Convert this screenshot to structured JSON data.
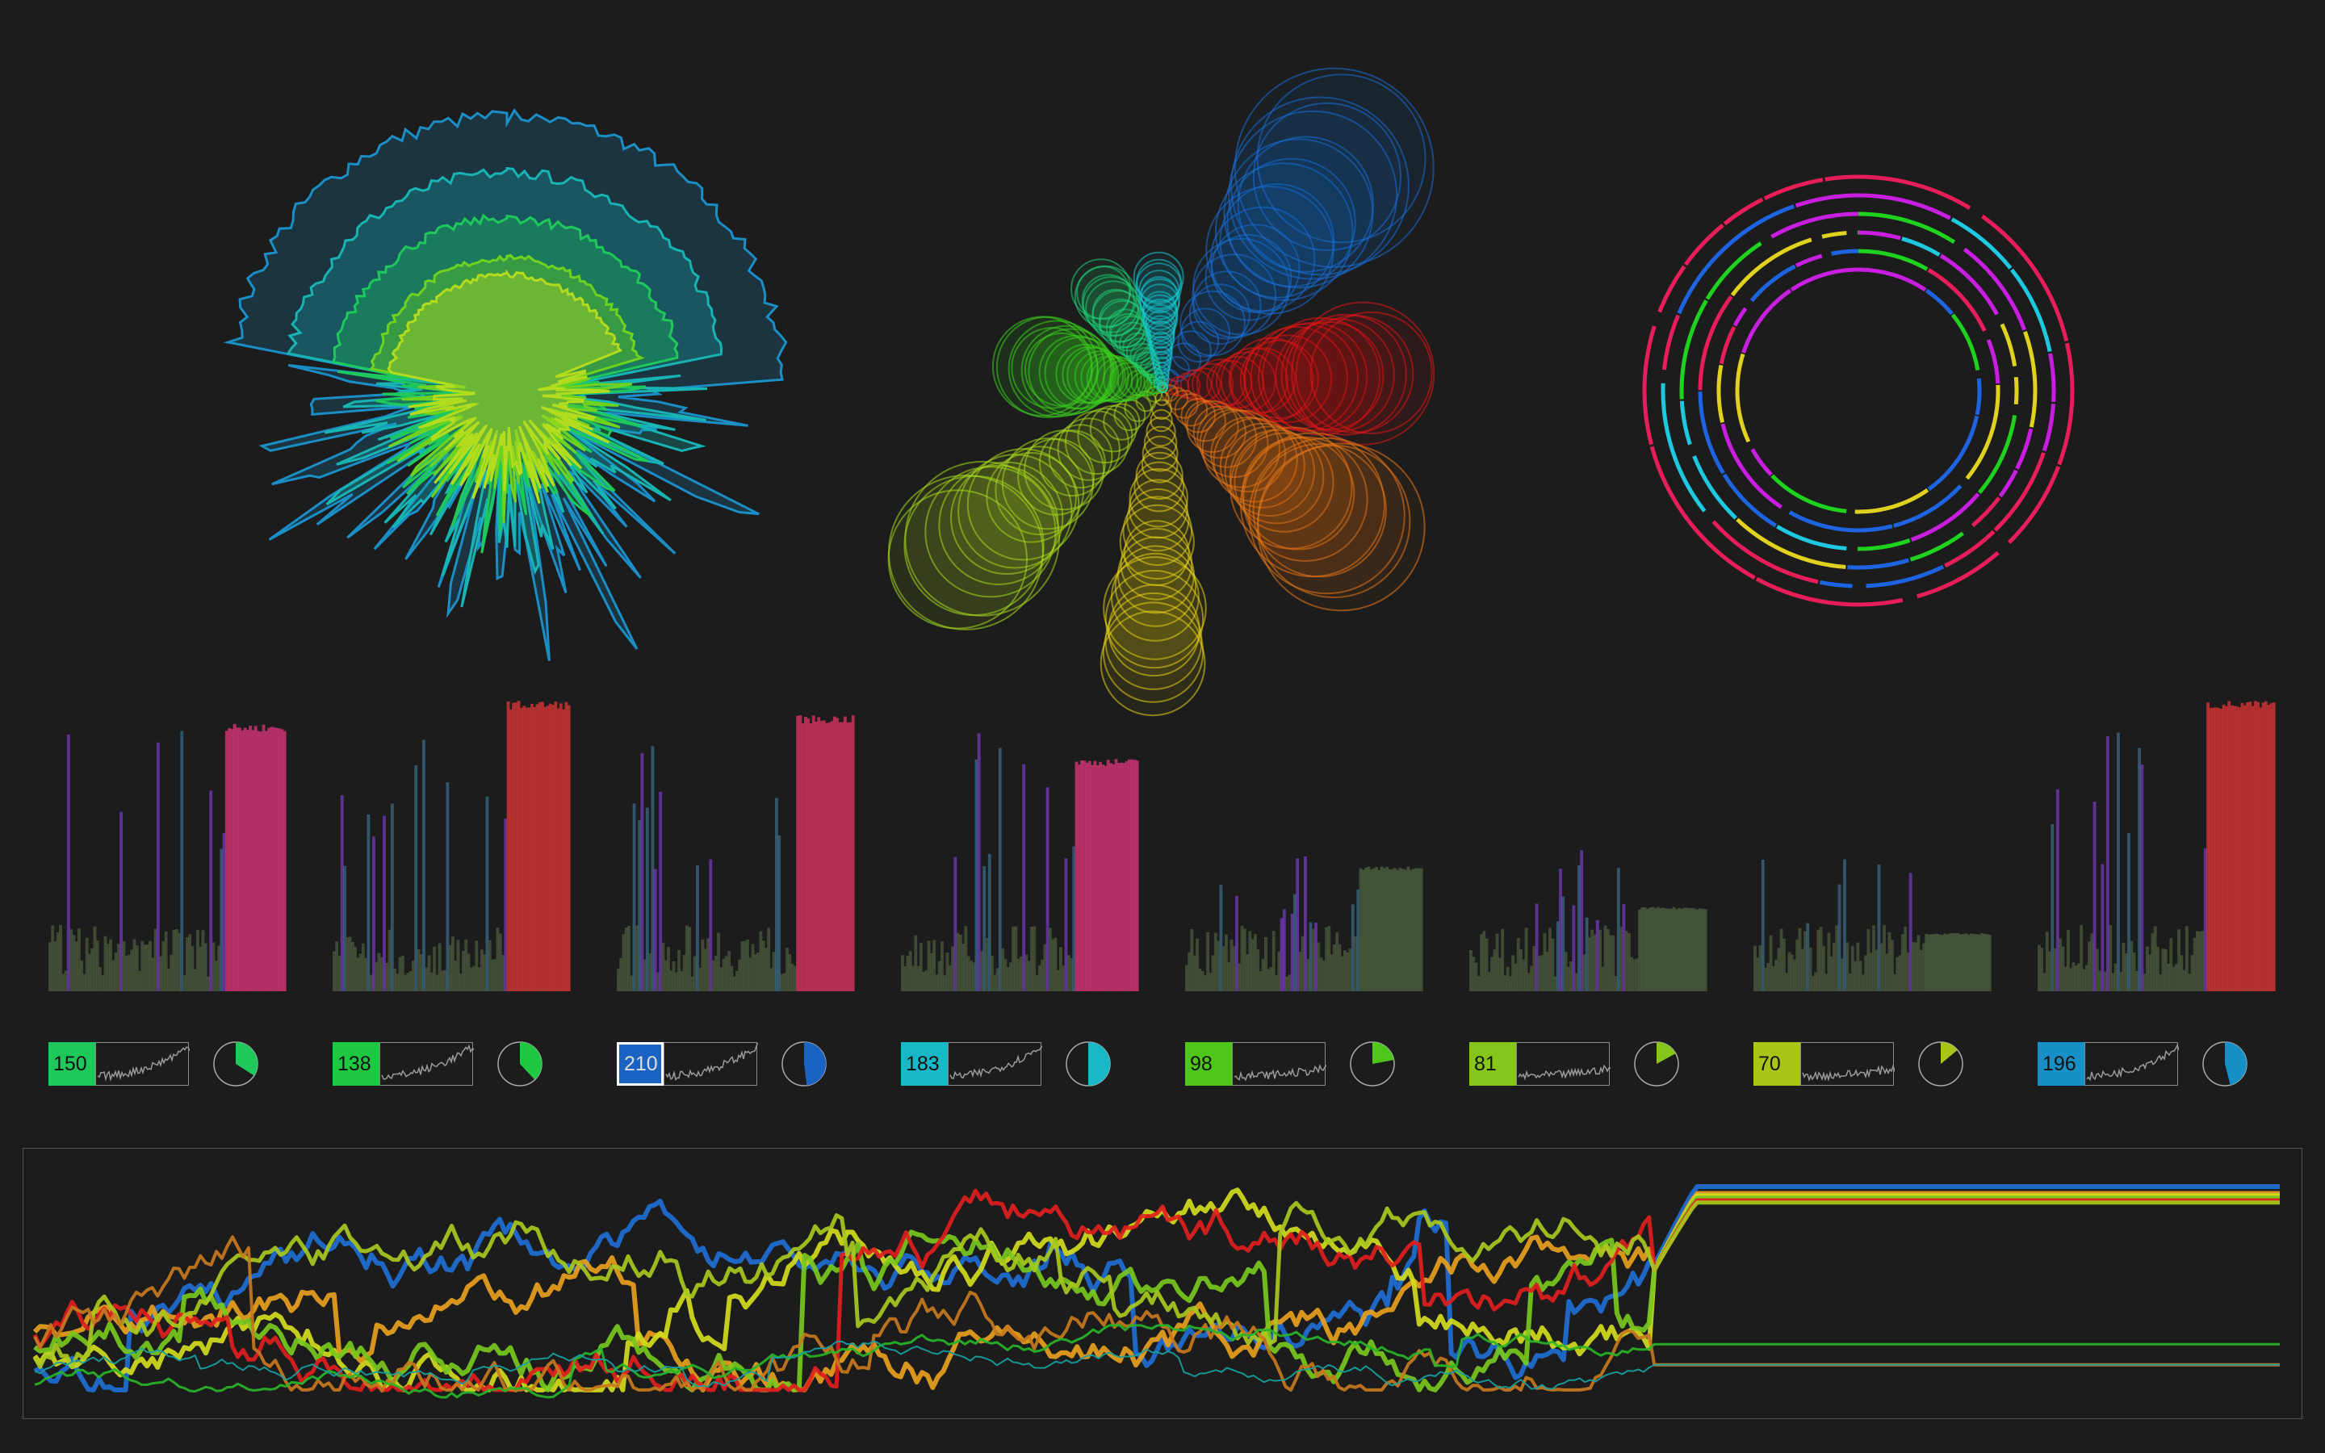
{
  "colors": {
    "background": "#1c1c1c",
    "panel_border": "#8a8a8a"
  },
  "channels": [
    {
      "value": "150",
      "color": "#1ec85a",
      "fraction": 0.34
    },
    {
      "value": "138",
      "color": "#1ec840",
      "fraction": 0.38
    },
    {
      "value": "210",
      "color": "#1b63c2",
      "fraction": 0.48,
      "selected": true
    },
    {
      "value": "183",
      "color": "#18b8c6",
      "fraction": 0.5
    },
    {
      "value": "98",
      "color": "#4ec61a",
      "fraction": 0.22
    },
    {
      "value": "81",
      "color": "#86c61a",
      "fraction": 0.17
    },
    {
      "value": "70",
      "color": "#a8c618",
      "fraction": 0.14
    },
    {
      "value": "196",
      "color": "#1690c6",
      "fraction": 0.46
    }
  ],
  "chart_data": [
    {
      "type": "area",
      "name": "radial",
      "shape": "polar",
      "layers": [
        {
          "color": "#1b8ec6",
          "max_radius": 0.98,
          "wedge_start_deg": -8,
          "wedge_end_deg": 88
        },
        {
          "color": "#18b4b4",
          "max_radius": 0.78,
          "wedge_start_deg": -8,
          "wedge_end_deg": 80
        },
        {
          "color": "#1ec85a",
          "max_radius": 0.62,
          "wedge_start_deg": -5,
          "wedge_end_deg": 78
        },
        {
          "color": "#6ed21e",
          "max_radius": 0.48,
          "wedge_start_deg": 0,
          "wedge_end_deg": 75
        },
        {
          "color": "#b4dc1e",
          "max_radius": 0.42,
          "wedge_start_deg": 0,
          "wedge_end_deg": 70
        }
      ]
    },
    {
      "type": "scatter",
      "name": "bubble-spokes",
      "spokes": [
        {
          "color": "#1b6ed6",
          "angle_deg": -52,
          "length": 1.0,
          "max_r": 0.3
        },
        {
          "color": "#e01818",
          "angle_deg": -4,
          "length": 0.72,
          "max_r": 0.22
        },
        {
          "color": "#e8781a",
          "angle_deg": 38,
          "length": 0.78,
          "max_r": 0.24
        },
        {
          "color": "#e8d21a",
          "angle_deg": 92,
          "length": 0.95,
          "max_r": 0.18
        },
        {
          "color": "#a8dc1e",
          "angle_deg": 140,
          "length": 0.92,
          "max_r": 0.25
        },
        {
          "color": "#3cd21e",
          "angle_deg": 190,
          "length": 0.42,
          "max_r": 0.15
        },
        {
          "color": "#1ed278",
          "angle_deg": 238,
          "length": 0.4,
          "max_r": 0.09
        },
        {
          "color": "#18c8d2",
          "angle_deg": 268,
          "length": 0.38,
          "max_r": 0.06
        }
      ]
    },
    {
      "type": "pie",
      "name": "rings",
      "rings": 6,
      "colors": [
        "#e81e5a",
        "#1e64e0",
        "#e0d21e",
        "#1ed21e",
        "#c81ee0",
        "#1ec8e0"
      ]
    },
    {
      "type": "bar",
      "name": "histograms",
      "groups": 8,
      "bars_per_group": 90,
      "tail_levels": [
        0.92,
        1.0,
        0.95,
        0.8,
        0.43,
        0.29,
        0.2,
        1.0
      ],
      "tail_colors": [
        "#c8326e",
        "#c83232",
        "#c8325a",
        "#c8326e",
        "#465a3c",
        "#465a3c",
        "#465a3c",
        "#c83232"
      ]
    },
    {
      "type": "line",
      "name": "timeline",
      "series": [
        {
          "color": "#1e6ed2",
          "weight": 6
        },
        {
          "color": "#e8a01e",
          "weight": 6
        },
        {
          "color": "#d2dc1e",
          "weight": 6
        },
        {
          "color": "#78c81e",
          "weight": 6
        },
        {
          "color": "#e01e1e",
          "weight": 5
        },
        {
          "color": "#a8c81e",
          "weight": 5
        },
        {
          "color": "#c8781e",
          "weight": 4
        },
        {
          "color": "#28b428",
          "weight": 3
        },
        {
          "color": "#18a0a0",
          "weight": 2
        }
      ]
    }
  ]
}
